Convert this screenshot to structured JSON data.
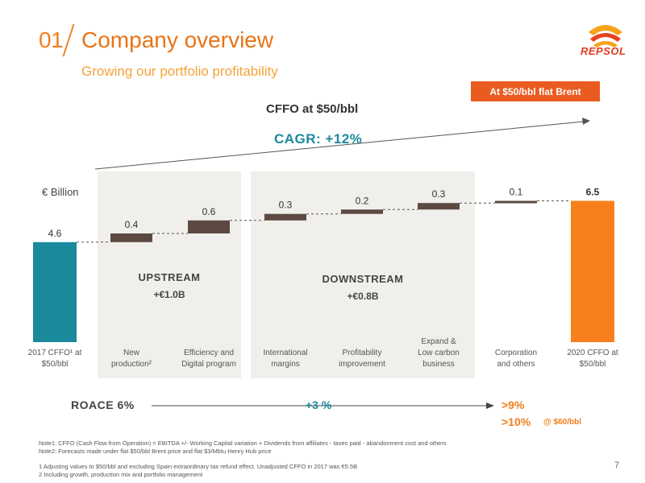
{
  "header": {
    "section_number": "01",
    "title": "Company overview",
    "subtitle": "Growing our portfolio profitability",
    "logo_text": "REPSOL",
    "badge": "At $50/bbl flat Brent"
  },
  "summary": {
    "cffo_label": "CFFO at $50/bbl",
    "cagr_label": "CAGR: +12%",
    "unit": "€ Billion"
  },
  "segments": {
    "upstream": {
      "name": "UPSTREAM",
      "value": "+€1.0B"
    },
    "downstream": {
      "name": "DOWNSTREAM",
      "value": "+€0.8B"
    }
  },
  "chart_data": {
    "type": "bar",
    "subtype": "waterfall",
    "unit": "€ Billion",
    "categories": [
      "2017 CFFO¹ at $50/bbl",
      "New production²",
      "Efficiency and Digital program",
      "International margins",
      "Profitability improvement",
      "Expand & Low carbon business",
      "Corporation and others",
      "2020 CFFO at $50/bbl"
    ],
    "cat_lines": [
      [
        "2017 CFFO¹ at",
        "$50/bbl"
      ],
      [
        "New",
        "production²"
      ],
      [
        "Efficiency and",
        "Digital program"
      ],
      [
        "International",
        "margins"
      ],
      [
        "Profitability",
        "improvement"
      ],
      [
        "Expand &",
        "Low carbon",
        "business"
      ],
      [
        "Corporation",
        "and others"
      ],
      [
        "2020 CFFO at",
        "$50/bbl"
      ]
    ],
    "values": [
      4.6,
      0.4,
      0.6,
      0.3,
      0.2,
      0.3,
      0.1,
      6.5
    ],
    "labels": [
      "4.6",
      "0.4",
      "0.6",
      "0.3",
      "0.2",
      "0.3",
      "0.1",
      "6.5"
    ],
    "kinds": [
      "total",
      "delta",
      "delta",
      "delta",
      "delta",
      "delta",
      "delta",
      "total"
    ],
    "colors": {
      "start_total": "#1b8a9c",
      "delta": "#5c4a42",
      "end_total": "#f7801d",
      "group_background": "#f0efeb"
    }
  },
  "roace": {
    "label": "ROACE  6%",
    "gain": "+3 %",
    "target_1": ">9%",
    "target_2": ">10%",
    "target_2_note": "@ $60/bbl"
  },
  "notes": [
    "Note1: CFFO (Cash Flow from Operation) = EBITDA +/- Working Capital variation + Dividends from affiliates - taxes paid - abandonment cost and others",
    "Note2: Forecasts made under flat $50/bbl Brent price and flat $3/Mbtu Henry Hub price",
    "1 Adjusting values to $50/bbl and excluding Spain extraordinary tax refund effect. Unadjusted CFFO in 2017 was €5.5B",
    "2 Including growth, production mix and portfolio management"
  ],
  "page_number": "7"
}
